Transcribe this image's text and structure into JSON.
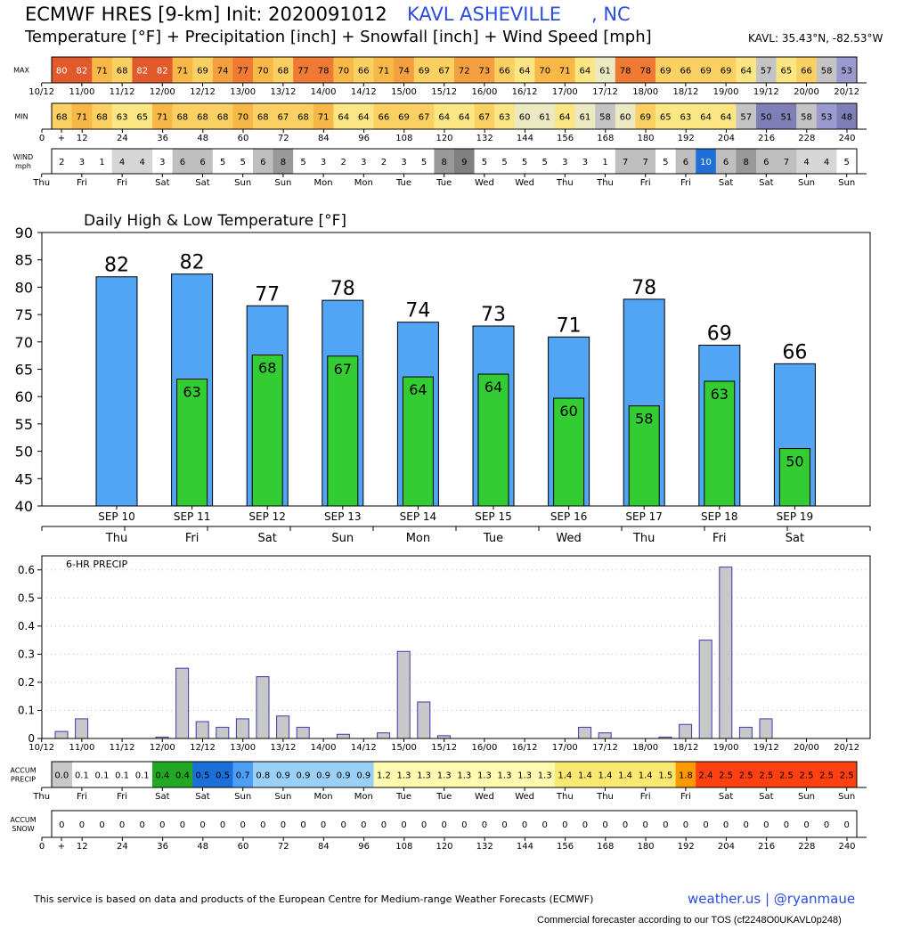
{
  "header": {
    "title": "ECMWF HRES [9-km] Init: 2020091012",
    "station": "KAVL ASHEVILLE",
    "state": ", NC",
    "subtitle": "Temperature [°F] + Precipitation [inch] + Snowfall [inch] + Wind Speed [mph]",
    "coords": "KAVL: 35.43°N, -82.53°W"
  },
  "colors": {
    "blue_bar": "#52a5f5",
    "green_bar": "#33cc33",
    "precip_bar": "#c8c8c8",
    "precip_edge": "#3a3ab0",
    "station_text": "#2a4de0"
  },
  "strip": {
    "max_label": "MAX",
    "min_label": "MIN",
    "wind_label_1": "WIND",
    "wind_label_2": "mph",
    "accum_precip_label_1": "ACCUM",
    "accum_precip_label_2": "PRECIP",
    "accum_snow_label_1": "ACCUM",
    "accum_snow_label_2": "SNOW",
    "max_values": [
      80,
      82,
      71,
      68,
      82,
      82,
      71,
      69,
      74,
      77,
      70,
      68,
      77,
      78,
      70,
      66,
      71,
      74,
      69,
      67,
      72,
      73,
      66,
      64,
      70,
      71,
      64,
      61,
      78,
      78,
      69,
      66,
      69,
      69,
      64,
      57,
      65,
      66,
      58,
      53
    ],
    "min_values": [
      68,
      71,
      68,
      63,
      65,
      71,
      68,
      68,
      68,
      70,
      68,
      67,
      68,
      71,
      64,
      64,
      66,
      69,
      67,
      64,
      64,
      67,
      63,
      60,
      61,
      64,
      61,
      58,
      60,
      69,
      65,
      63,
      64,
      64,
      57,
      50,
      51,
      58,
      53,
      48
    ],
    "wind_values": [
      2,
      3,
      1,
      4,
      4,
      3,
      6,
      6,
      5,
      5,
      6,
      8,
      5,
      3,
      2,
      3,
      2,
      3,
      5,
      8,
      9,
      5,
      5,
      5,
      5,
      3,
      3,
      1,
      7,
      7,
      5,
      6,
      10,
      6,
      8,
      6,
      7,
      4,
      4,
      5
    ],
    "accum_precip_values": [
      "0.0",
      "0.1",
      "0.1",
      "0.1",
      "0.1",
      "0.4",
      "0.4",
      "0.5",
      "0.5",
      "0.7",
      "0.8",
      "0.9",
      "0.9",
      "0.9",
      "0.9",
      "0.9",
      "1.2",
      "1.3",
      "1.3",
      "1.3",
      "1.3",
      "1.3",
      "1.3",
      "1.3",
      "1.3",
      "1.4",
      "1.4",
      "1.4",
      "1.4",
      "1.4",
      "1.5",
      "1.8",
      "2.4",
      "2.5",
      "2.5",
      "2.5",
      "2.5",
      "2.5",
      "2.5",
      "2.5"
    ],
    "accum_snow_values": [
      "0",
      "0",
      "0",
      "0",
      "0",
      "0",
      "0",
      "0",
      "0",
      "0",
      "0",
      "0",
      "0",
      "0",
      "0",
      "0",
      "0",
      "0",
      "0",
      "0",
      "0",
      "0",
      "0",
      "0",
      "0",
      "0",
      "0",
      "0",
      "0",
      "0",
      "0",
      "0",
      "0",
      "0",
      "0",
      "0",
      "0",
      "0",
      "0",
      "0"
    ],
    "time_labels": [
      "10/12",
      "11/00",
      "11/12",
      "12/00",
      "12/12",
      "13/00",
      "13/12",
      "14/00",
      "14/12",
      "15/00",
      "15/12",
      "16/00",
      "16/12",
      "17/00",
      "17/12",
      "18/00",
      "18/12",
      "19/00",
      "19/12",
      "20/00",
      "20/12"
    ],
    "hour_labels": [
      "0",
      "+",
      "12",
      "24",
      "36",
      "48",
      "60",
      "72",
      "84",
      "96",
      "108",
      "120",
      "132",
      "144",
      "156",
      "168",
      "180",
      "192",
      "204",
      "216",
      "228",
      "240"
    ],
    "day_labels": [
      "Thu",
      "Fri",
      "Fri",
      "Sat",
      "Sat",
      "Sun",
      "Sun",
      "Mon",
      "Mon",
      "Tue",
      "Tue",
      "Wed",
      "Wed",
      "Thu",
      "Thu",
      "Fri",
      "Fri",
      "Sat",
      "Sat",
      "Sun",
      "Sun"
    ]
  },
  "chart_data": [
    {
      "type": "bar",
      "title": "Daily High & Low Temperature [°F]",
      "categories": [
        "SEP 10",
        "SEP 11",
        "SEP 12",
        "SEP 13",
        "SEP 14",
        "SEP 15",
        "SEP 16",
        "SEP 17",
        "SEP 18",
        "SEP 19"
      ],
      "weekdays": [
        "Thu",
        "Fri",
        "Sat",
        "Sun",
        "Mon",
        "Tue",
        "Wed",
        "Thu",
        "Fri",
        "Sat"
      ],
      "highs": [
        82,
        82,
        77,
        78,
        74,
        73,
        71,
        78,
        69,
        66
      ],
      "highs_exact": [
        81.9,
        82.4,
        76.6,
        77.6,
        73.6,
        72.9,
        70.9,
        77.8,
        69.4,
        66.0
      ],
      "lows": [
        null,
        63,
        68,
        67,
        64,
        64,
        60,
        58,
        63,
        50
      ],
      "lows_exact": [
        null,
        63.2,
        67.6,
        67.4,
        63.6,
        64.1,
        59.7,
        58.3,
        62.8,
        50.5
      ],
      "ylim": [
        40,
        90
      ],
      "yticks": [
        40,
        45,
        50,
        55,
        60,
        65,
        70,
        75,
        80,
        85,
        90
      ]
    },
    {
      "type": "bar",
      "title": "6-HR PRECIP",
      "x": [
        "10/12",
        "10/18",
        "11/00",
        "11/06",
        "11/12",
        "11/18",
        "12/00",
        "12/06",
        "12/12",
        "12/18",
        "13/00",
        "13/06",
        "13/12",
        "13/18",
        "14/00",
        "14/06",
        "14/12",
        "14/18",
        "15/00",
        "15/06",
        "15/12",
        "15/18",
        "16/00",
        "16/06",
        "16/12",
        "16/18",
        "17/00",
        "17/06",
        "17/12",
        "17/18",
        "18/00",
        "18/06",
        "18/12",
        "18/18",
        "19/00",
        "19/06",
        "19/12",
        "19/18",
        "20/00",
        "20/06"
      ],
      "values": [
        0.025,
        0.07,
        0.0,
        0.0,
        0.0,
        0.005,
        0.25,
        0.06,
        0.04,
        0.07,
        0.22,
        0.08,
        0.04,
        0.0,
        0.015,
        0.0,
        0.02,
        0.31,
        0.13,
        0.01,
        0.0,
        0.0,
        0.0,
        0.0,
        0.0,
        0.0,
        0.04,
        0.02,
        0.0,
        0.0,
        0.005,
        0.05,
        0.35,
        0.61,
        0.04,
        0.07,
        0.0,
        0.0,
        0.0,
        0.0
      ],
      "ylim": [
        0,
        0.65
      ],
      "yticks": [
        "0",
        "0.1",
        "0.2",
        "0.3",
        "0.4",
        "0.5",
        "0.6"
      ]
    }
  ],
  "footer": {
    "note": "This service is based on data and products of the European Centre for Medium-range Weather Forecasts (ECMWF)",
    "brand": "weather.us | @ryanmaue",
    "tos": "Commercial forecaster according to our TOS (cf2248O0UKAVL0p248)"
  }
}
